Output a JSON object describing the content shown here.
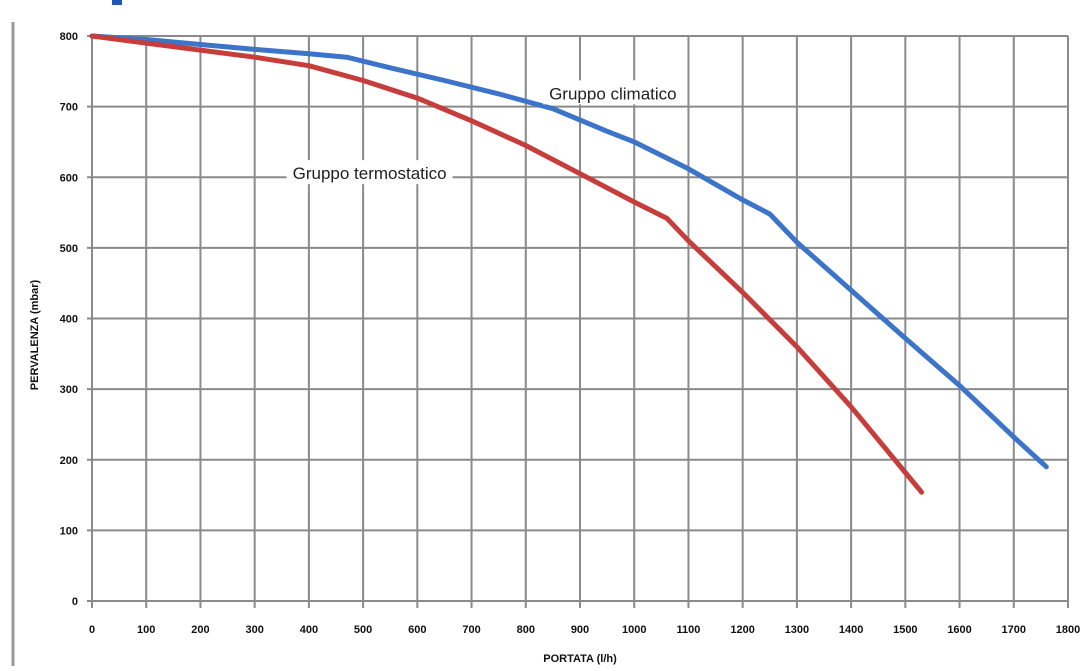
{
  "chart_data": {
    "type": "line",
    "title": "",
    "xlabel": "PORTATA (l/h)",
    "ylabel": "PERVALENZA (mbar)",
    "xlim": [
      0,
      1800
    ],
    "ylim": [
      0,
      800
    ],
    "x_ticks": [
      "0",
      "100",
      "200",
      "300",
      "400",
      "500",
      "600",
      "700",
      "800",
      "900",
      "1000",
      "1100",
      "1200",
      "1300",
      "1400",
      "1500",
      "1600",
      "1700",
      "1800"
    ],
    "y_ticks": [
      "0",
      "100",
      "200",
      "300",
      "400",
      "500",
      "600",
      "700",
      "800"
    ],
    "grid": true,
    "legend": "inline labels",
    "series": [
      {
        "name": "Gruppo climatico",
        "color": "#3b74c9",
        "x": [
          0,
          100,
          200,
          300,
          400,
          470,
          550,
          650,
          750,
          850,
          950,
          1000,
          1100,
          1200,
          1250,
          1300,
          1400,
          1500,
          1600,
          1700,
          1760
        ],
        "y": [
          800,
          795,
          788,
          781,
          775,
          770,
          755,
          737,
          718,
          697,
          665,
          650,
          612,
          568,
          548,
          508,
          440,
          372,
          305,
          232,
          190
        ]
      },
      {
        "name": "Gruppo termostatico",
        "color": "#c63d3b",
        "x": [
          0,
          100,
          200,
          300,
          400,
          500,
          600,
          700,
          800,
          900,
          1000,
          1060,
          1100,
          1200,
          1300,
          1400,
          1500,
          1530
        ],
        "y": [
          800,
          790,
          780,
          770,
          758,
          737,
          712,
          680,
          645,
          605,
          565,
          542,
          510,
          437,
          360,
          275,
          182,
          154
        ]
      }
    ]
  }
}
